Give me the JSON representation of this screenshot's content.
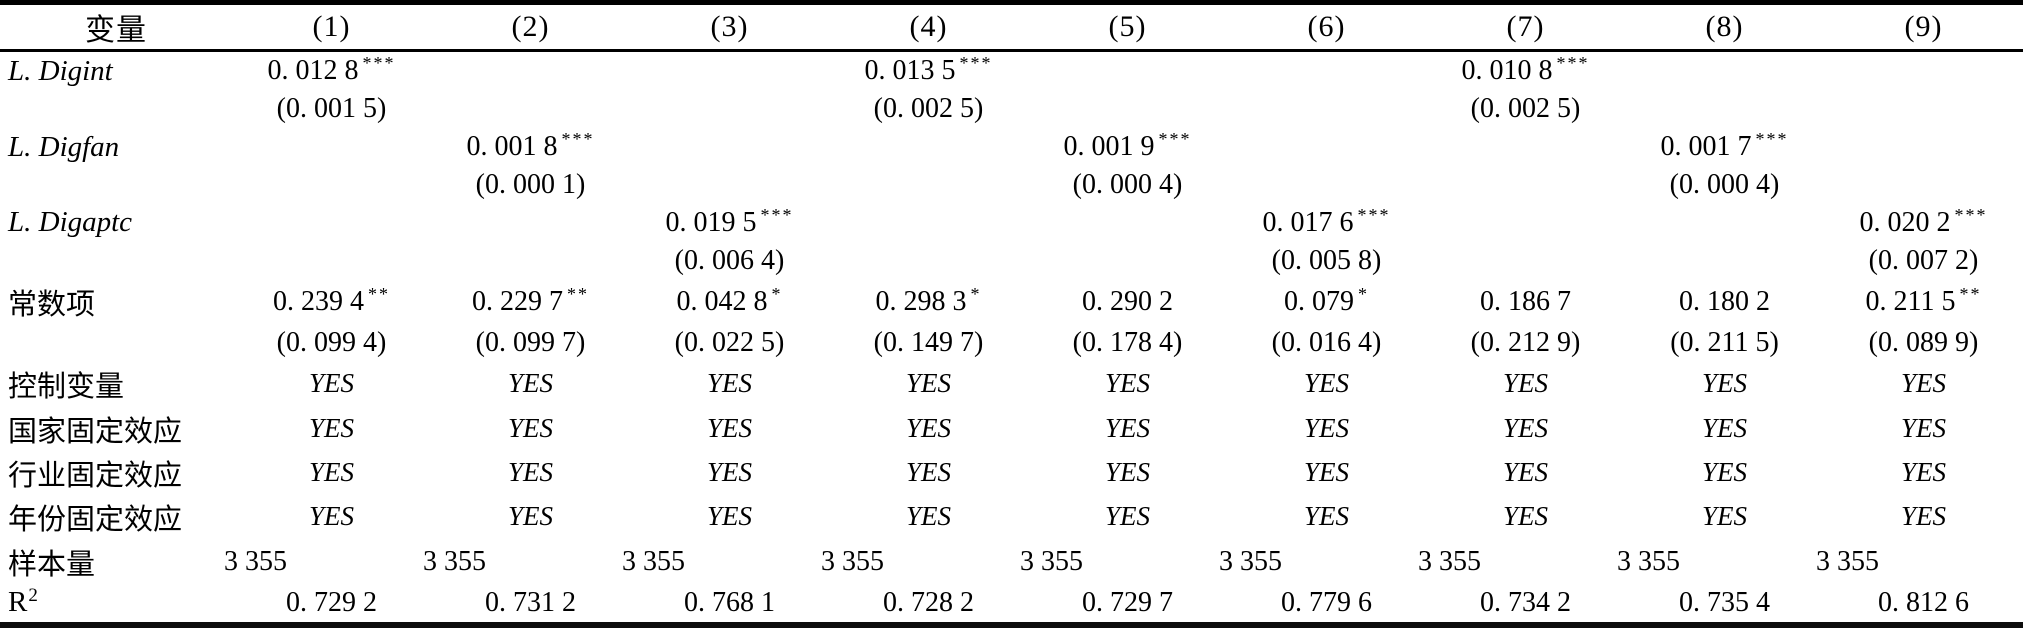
{
  "colors": {
    "background": "#ffffff",
    "text": "#000000",
    "rule": "#000000"
  },
  "table": {
    "header": [
      "变量",
      "(1)",
      "(2)",
      "(3)",
      "(4)",
      "(5)",
      "(6)",
      "(7)",
      "(8)",
      "(9)"
    ],
    "rows": [
      {
        "label": "L. Digint",
        "label_italic": true,
        "type": "coef",
        "cells": [
          {
            "t": "0. 012 8",
            "s": "***"
          },
          null,
          null,
          {
            "t": "0. 013 5",
            "s": "***"
          },
          null,
          null,
          {
            "t": "0. 010 8",
            "s": "***"
          },
          null,
          null
        ]
      },
      {
        "label": "",
        "type": "se",
        "cells": [
          {
            "t": "(0. 001 5)"
          },
          null,
          null,
          {
            "t": "(0. 002 5)"
          },
          null,
          null,
          {
            "t": "(0. 002 5)"
          },
          null,
          null
        ]
      },
      {
        "label": "L. Digfan",
        "label_italic": true,
        "type": "coef",
        "cells": [
          null,
          {
            "t": "0. 001 8",
            "s": "***"
          },
          null,
          null,
          {
            "t": "0. 001 9",
            "s": "***"
          },
          null,
          null,
          {
            "t": "0. 001 7",
            "s": "***"
          },
          null
        ]
      },
      {
        "label": "",
        "type": "se",
        "cells": [
          null,
          {
            "t": "(0. 000 1)"
          },
          null,
          null,
          {
            "t": "(0. 000 4)"
          },
          null,
          null,
          {
            "t": "(0. 000 4)"
          },
          null
        ]
      },
      {
        "label": "L. Digaptc",
        "label_italic": true,
        "type": "coef",
        "cells": [
          null,
          null,
          {
            "t": "0. 019 5",
            "s": "***"
          },
          null,
          null,
          {
            "t": "0. 017 6",
            "s": "***"
          },
          null,
          null,
          {
            "t": "0. 020 2",
            "s": "***"
          }
        ]
      },
      {
        "label": "",
        "type": "se",
        "cells": [
          null,
          null,
          {
            "t": "(0. 006 4)"
          },
          null,
          null,
          {
            "t": "(0. 005 8)"
          },
          null,
          null,
          {
            "t": "(0. 007 2)"
          }
        ]
      },
      {
        "label": "常数项",
        "type": "coef",
        "cells": [
          {
            "t": "0. 239 4",
            "s": "**"
          },
          {
            "t": "0. 229 7",
            "s": "**"
          },
          {
            "t": "0. 042 8",
            "s": "*"
          },
          {
            "t": "0. 298 3",
            "s": "*"
          },
          {
            "t": "0. 290 2"
          },
          {
            "t": "0. 079",
            "s": "*"
          },
          {
            "t": "0. 186 7"
          },
          {
            "t": "0. 180 2"
          },
          {
            "t": "0. 211 5",
            "s": "**"
          }
        ]
      },
      {
        "label": "",
        "type": "se",
        "cells": [
          {
            "t": "(0. 099 4)"
          },
          {
            "t": "(0. 099 7)"
          },
          {
            "t": "(0. 022 5)"
          },
          {
            "t": "(0. 149 7)"
          },
          {
            "t": "(0. 178 4)"
          },
          {
            "t": "(0. 016 4)"
          },
          {
            "t": "(0. 212 9)"
          },
          {
            "t": "(0. 211 5)"
          },
          {
            "t": "(0. 089 9)"
          }
        ]
      },
      {
        "label": "控制变量",
        "type": "yes",
        "cells": [
          {
            "t": "YES"
          },
          {
            "t": "YES"
          },
          {
            "t": "YES"
          },
          {
            "t": "YES"
          },
          {
            "t": "YES"
          },
          {
            "t": "YES"
          },
          {
            "t": "YES"
          },
          {
            "t": "YES"
          },
          {
            "t": "YES"
          }
        ]
      },
      {
        "label": "国家固定效应",
        "type": "yes",
        "cells": [
          {
            "t": "YES"
          },
          {
            "t": "YES"
          },
          {
            "t": "YES"
          },
          {
            "t": "YES"
          },
          {
            "t": "YES"
          },
          {
            "t": "YES"
          },
          {
            "t": "YES"
          },
          {
            "t": "YES"
          },
          {
            "t": "YES"
          }
        ]
      },
      {
        "label": "行业固定效应",
        "type": "yes",
        "cells": [
          {
            "t": "YES"
          },
          {
            "t": "YES"
          },
          {
            "t": "YES"
          },
          {
            "t": "YES"
          },
          {
            "t": "YES"
          },
          {
            "t": "YES"
          },
          {
            "t": "YES"
          },
          {
            "t": "YES"
          },
          {
            "t": "YES"
          }
        ]
      },
      {
        "label": "年份固定效应",
        "type": "yes",
        "cells": [
          {
            "t": "YES"
          },
          {
            "t": "YES"
          },
          {
            "t": "YES"
          },
          {
            "t": "YES"
          },
          {
            "t": "YES"
          },
          {
            "t": "YES"
          },
          {
            "t": "YES"
          },
          {
            "t": "YES"
          },
          {
            "t": "YES"
          }
        ]
      },
      {
        "label": "样本量",
        "type": "n",
        "cells": [
          {
            "t": "3 355"
          },
          {
            "t": "3 355"
          },
          {
            "t": "3 355"
          },
          {
            "t": "3 355"
          },
          {
            "t": "3 355"
          },
          {
            "t": "3 355"
          },
          {
            "t": "3 355"
          },
          {
            "t": "3 355"
          },
          {
            "t": "3 355"
          }
        ]
      },
      {
        "label": "R",
        "label_sup": "2",
        "type": "r2",
        "cells": [
          {
            "t": "0. 729 2"
          },
          {
            "t": "0. 731 2"
          },
          {
            "t": "0. 768 1"
          },
          {
            "t": "0. 728 2"
          },
          {
            "t": "0. 729 7"
          },
          {
            "t": "0. 779 6"
          },
          {
            "t": "0. 734 2"
          },
          {
            "t": "0. 735 4"
          },
          {
            "t": "0. 812 6"
          }
        ]
      }
    ]
  }
}
